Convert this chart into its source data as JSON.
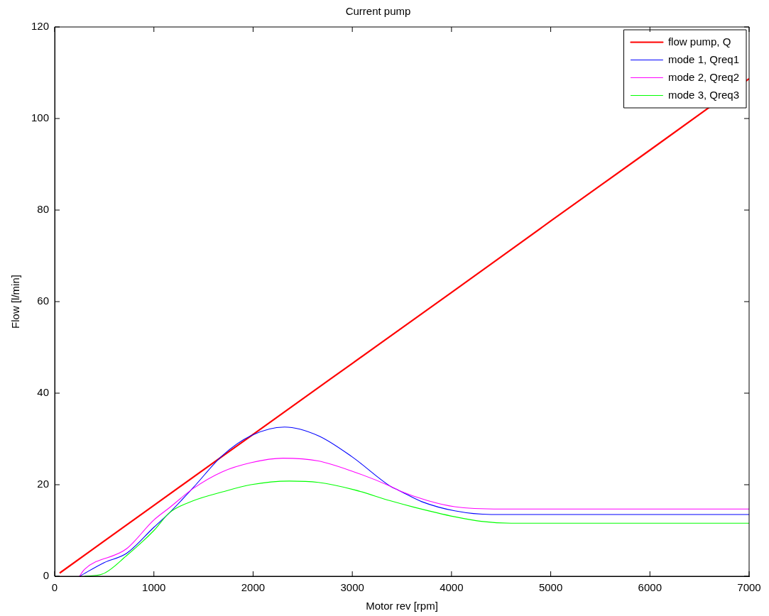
{
  "chart_data": {
    "type": "line",
    "title": "Current pump",
    "xlabel": "Motor rev [rpm]",
    "ylabel": "Flow [l/min]",
    "xlim": [
      0,
      7000
    ],
    "ylim": [
      0,
      120
    ],
    "xticks": [
      0,
      1000,
      2000,
      3000,
      4000,
      5000,
      6000,
      7000
    ],
    "yticks": [
      0,
      20,
      40,
      60,
      80,
      100,
      120
    ],
    "grid": false,
    "legend": "top right",
    "marker": "none",
    "line_style": "solid",
    "series": [
      {
        "name": "flow pump, Q",
        "color": "#ff0000",
        "x": [
          50,
          1000,
          2000,
          3000,
          4000,
          5000,
          6000,
          7000
        ],
        "values": [
          0.7,
          15.5,
          31,
          46.5,
          62,
          77.6,
          93.1,
          108.7
        ]
      },
      {
        "name": "mode 1, Qreq1",
        "color": "#0000ff",
        "x": [
          250,
          500,
          724,
          1000,
          1158,
          1398,
          1687,
          1977,
          2317,
          2657,
          2997,
          3381,
          3475,
          3700,
          4032,
          4400,
          5000,
          6000,
          7000
        ],
        "values": [
          0,
          3,
          5,
          10.7,
          13.9,
          19.4,
          26.3,
          30.7,
          32.6,
          30.7,
          26.1,
          19.7,
          18.7,
          16.3,
          14.3,
          13.5,
          13.5,
          13.5,
          13.5
        ]
      },
      {
        "name": "mode 2, Qreq2",
        "color": "#ff00ff",
        "x": [
          250,
          300,
          724,
          1000,
          1158,
          1398,
          1687,
          1977,
          2300,
          2657,
          3018,
          3381,
          3475,
          3750,
          4032,
          4500,
          5000,
          6000,
          7000
        ],
        "values": [
          0,
          1.5,
          6,
          12.3,
          15,
          19.2,
          22.8,
          24.8,
          25.8,
          25.2,
          22.8,
          19.7,
          18.7,
          16.6,
          15.2,
          14.7,
          14.7,
          14.7,
          14.7
        ]
      },
      {
        "name": "mode 3, Qreq3",
        "color": "#00ff00",
        "x": [
          300,
          483,
          724,
          1000,
          1158,
          1398,
          1687,
          1977,
          2365,
          2657,
          3018,
          3381,
          3620,
          4032,
          4300,
          4600,
          5000,
          6000,
          7000
        ],
        "values": [
          0,
          0.5,
          4.5,
          10,
          13.9,
          16.5,
          18.4,
          20,
          20.8,
          20.5,
          18.9,
          16.5,
          15.1,
          13,
          12,
          11.6,
          11.6,
          11.6,
          11.6
        ]
      }
    ]
  }
}
